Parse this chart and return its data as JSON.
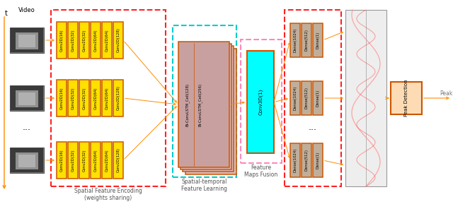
{
  "video_label": "Video",
  "conv_labels": [
    "Conv2D(16)",
    "Conv2D(32)",
    "Conv2D(32)",
    "Conv2D(64)",
    "Conv2D(64)",
    "Conv2D(128)"
  ],
  "lstm_labels": [
    "Bi-ConvLSTM_Cell(128)",
    "Bi-ConvLSTM_Cell(256)"
  ],
  "conv3d_label": "Conv3D(1)",
  "dense_labels": [
    "Dense(1024)",
    "Dense(512)",
    "Dense(1)"
  ],
  "peak_label": "Peak Detection",
  "peak_output": "Peak",
  "label_spatial": "Spatial Feature Encoding\n(weights sharing)",
  "label_spatiotemporal": "Spatial-temporal\nFeature Learning",
  "label_fusion": "Feature\nMaps Fusion",
  "yellow": "#FFE000",
  "orange_border": "#CC5500",
  "red_dashed": "#FF2222",
  "cyan_dashed": "#00CCCC",
  "pink_dashed": "#FF88BB",
  "lstm_fill": "#C8A0A0",
  "lstm_fill_light": "#DDBBBB",
  "conv3d_fill": "#00FFFF",
  "dense_fill": "#C0AE9A",
  "dense_fill_light": "#D5C8B8",
  "peak_fill": "#FDDCB5",
  "signal_bg": "#E8E8E8",
  "signal_color1": "#FF7777",
  "signal_color2": "#FF4444",
  "arrow_color": "#FF8C00",
  "bg": "#FFFFFF",
  "time_arrow_color": "#FF8C00",
  "label_color": "#555555",
  "t_label_color": "#000000"
}
